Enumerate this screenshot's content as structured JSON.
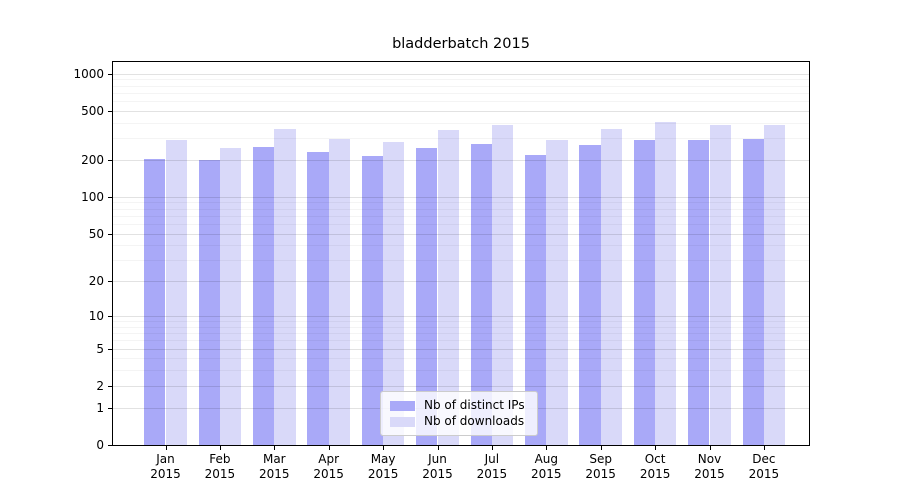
{
  "title": "bladderbatch 2015",
  "chart_data": {
    "type": "bar",
    "title": "bladderbatch 2015",
    "categories": [
      "Jan 2015",
      "Feb 2015",
      "Mar 2015",
      "Apr 2015",
      "May 2015",
      "Jun 2015",
      "Jul 2015",
      "Aug 2015",
      "Sep 2015",
      "Oct 2015",
      "Nov 2015",
      "Dec 2015"
    ],
    "series": [
      {
        "name": "Nb of distinct IPs",
        "color": "#a9a9f8",
        "values": [
          203,
          198,
          253,
          233,
          215,
          250,
          268,
          221,
          264,
          289,
          291,
          296
        ]
      },
      {
        "name": "Nb of downloads",
        "color": "#d9d9f9",
        "values": [
          289,
          251,
          355,
          298,
          279,
          351,
          385,
          289,
          353,
          402,
          385,
          387
        ]
      }
    ],
    "xlabel": "",
    "ylabel": "",
    "y_scale": "log1p",
    "ylim": [
      0,
      1220
    ],
    "y_ticks": [
      1000,
      500,
      200,
      100,
      50,
      20,
      10,
      5,
      2,
      1,
      0
    ],
    "y_minor_ticks": [
      3,
      4,
      6,
      7,
      8,
      9,
      30,
      40,
      60,
      70,
      80,
      90,
      300,
      400,
      600,
      700,
      800,
      900
    ],
    "grid": "on",
    "grid_over_bars": true,
    "legend_position": "lower center",
    "axis_color": "#000000",
    "background_color": "#ffffff"
  }
}
